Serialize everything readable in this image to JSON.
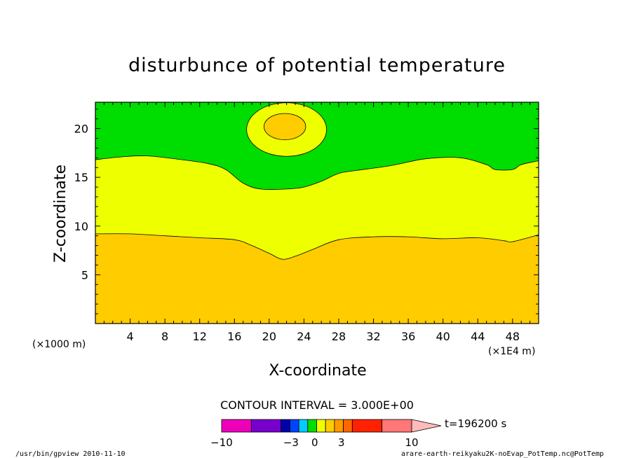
{
  "chart_data": {
    "type": "contour",
    "title": "disturbunce of potential temperature",
    "xlabel": "X-coordinate",
    "ylabel": "Z-coordinate",
    "x_unit_left": "(×1000 m)",
    "x_unit_right": "(×1E4 m)",
    "xlim": [
      0,
      51
    ],
    "ylim": [
      0,
      22.7
    ],
    "x_ticks": [
      4,
      8,
      12,
      16,
      20,
      24,
      28,
      32,
      36,
      40,
      44,
      48
    ],
    "y_ticks": [
      5,
      10,
      15,
      20
    ],
    "contour_interval_label": "CONTOUR INTERVAL = 3.000E+00",
    "time_label": "t=196200 s",
    "colors": {
      "level_3_6": "#ffcc00",
      "level_0_3": "#eeff00",
      "level_m3_0": "#00dd00",
      "frame": "#000000"
    },
    "contours": [
      {
        "name": "lower boundary",
        "points": [
          [
            0,
            9.2
          ],
          [
            4,
            9.2
          ],
          [
            8,
            9.0
          ],
          [
            12,
            8.8
          ],
          [
            16,
            8.6
          ],
          [
            18,
            8.0
          ],
          [
            20,
            7.2
          ],
          [
            21.5,
            6.6
          ],
          [
            23,
            6.9
          ],
          [
            25,
            7.6
          ],
          [
            28,
            8.6
          ],
          [
            32,
            8.9
          ],
          [
            36,
            8.9
          ],
          [
            40,
            8.7
          ],
          [
            44,
            8.8
          ],
          [
            47,
            8.5
          ],
          [
            48,
            8.4
          ],
          [
            51,
            9.1
          ]
        ]
      },
      {
        "name": "upper boundary",
        "points": [
          [
            0,
            16.8
          ],
          [
            3,
            17.1
          ],
          [
            6,
            17.2
          ],
          [
            10,
            16.8
          ],
          [
            13,
            16.4
          ],
          [
            15,
            15.8
          ],
          [
            17,
            14.4
          ],
          [
            19,
            13.8
          ],
          [
            22,
            13.8
          ],
          [
            24,
            14.0
          ],
          [
            26,
            14.6
          ],
          [
            28,
            15.4
          ],
          [
            30,
            15.7
          ],
          [
            34,
            16.2
          ],
          [
            38,
            16.9
          ],
          [
            42,
            17.0
          ],
          [
            45,
            16.3
          ],
          [
            46,
            15.8
          ],
          [
            48,
            15.8
          ],
          [
            49,
            16.3
          ],
          [
            51,
            16.7
          ]
        ]
      }
    ],
    "closed_contours": [
      {
        "name": "outer bubble",
        "cx": 22.0,
        "cy": 19.9,
        "rx": 4.6,
        "ry": 2.75,
        "fill_key": "level_0_3"
      },
      {
        "name": "inner bubble",
        "cx": 21.8,
        "cy": 20.2,
        "rx": 2.4,
        "ry": 1.35,
        "fill_key": "level_3_6"
      }
    ],
    "colorbar": {
      "colors": [
        "#ee00bb",
        "#7700cc",
        "#0000aa",
        "#0044ff",
        "#00ccff",
        "#00dd00",
        "#eeff00",
        "#ffcc00",
        "#ff9900",
        "#ff6600",
        "#ff2200",
        "#ff7777",
        "#ffbbbb"
      ],
      "widths": [
        1,
        1,
        0.3,
        0.3,
        0.3,
        0.3,
        0.3,
        0.3,
        0.3,
        0.3,
        1,
        1,
        0.9
      ],
      "labels": [
        {
          "text": "−10",
          "at": 0
        },
        {
          "text": "−3",
          "at": 0.365
        },
        {
          "text": "0",
          "at": 0.49
        },
        {
          "text": "3",
          "at": 0.63
        },
        {
          "text": "10",
          "at": 1.0
        }
      ]
    }
  },
  "footer": {
    "left": "/usr/bin/gpview  2010-11-10",
    "right": "arare-earth-reikyaku2K-noEvap_PotTemp.nc@PotTemp"
  }
}
